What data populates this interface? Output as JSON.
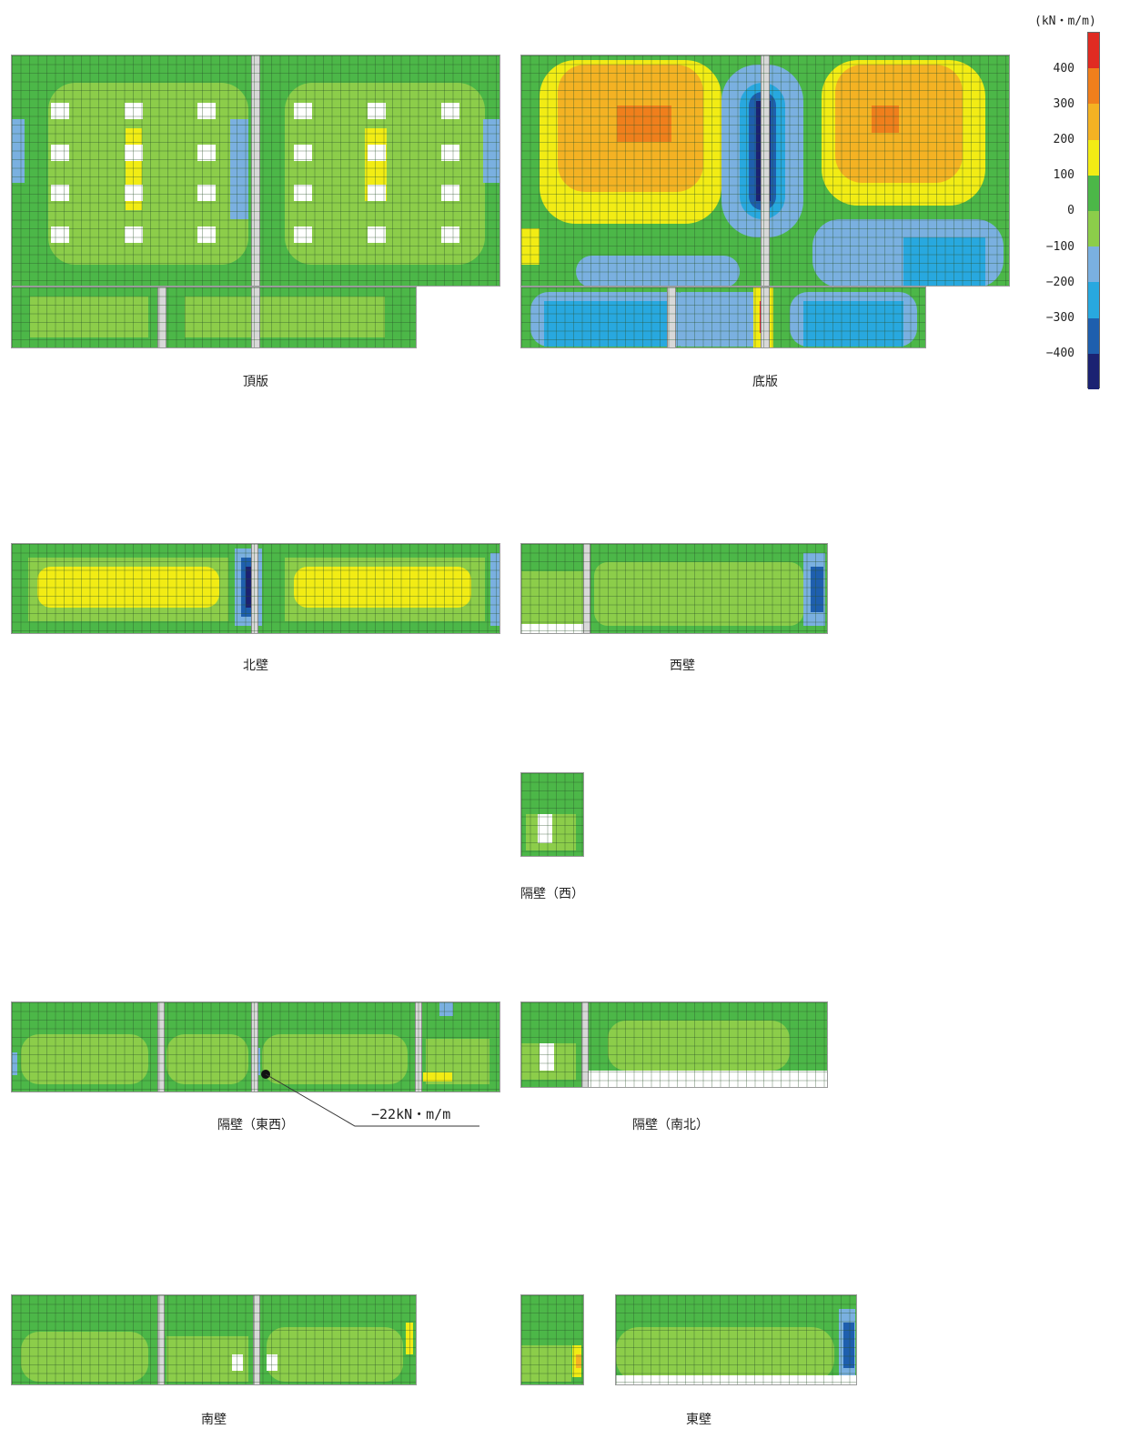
{
  "legend": {
    "unit": "(kN・m/m)",
    "ticks": [
      "400",
      "300",
      "200",
      "100",
      "0",
      "−100",
      "−200",
      "−300",
      "−400"
    ],
    "colors": [
      "#e02b22",
      "#f07f1c",
      "#f4b223",
      "#f2ec14",
      "#4cb748",
      "#8ccd4a",
      "#7ab0e0",
      "#28a8df",
      "#1e5fae",
      "#1b2272"
    ]
  },
  "panels": {
    "top_slab": "頂版",
    "bottom_slab": "底版",
    "north_wall": "北壁",
    "west_wall": "西壁",
    "partition_west": "隔壁（西）",
    "partition_ew": "隔壁（東西）",
    "partition_ns": "隔壁（南北）",
    "south_wall": "南壁",
    "east_wall": "東壁"
  },
  "annotation": {
    "text": "−22kN・m/m"
  }
}
